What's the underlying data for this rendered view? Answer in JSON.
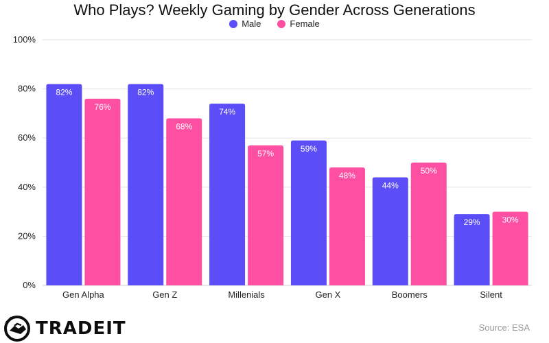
{
  "chart_data": {
    "type": "bar",
    "title": "Who Plays? Weekly Gaming by Gender Across Generations",
    "categories": [
      "Gen Alpha",
      "Gen Z",
      "Millenials",
      "Gen X",
      "Boomers",
      "Silent"
    ],
    "series": [
      {
        "name": "Male",
        "color": "#5b4ef6",
        "values": [
          82,
          82,
          74,
          59,
          44,
          29
        ],
        "labels": [
          "82%",
          "82%",
          "74%",
          "59%",
          "44%",
          "29%"
        ]
      },
      {
        "name": "Female",
        "color": "#ff4fa2",
        "values": [
          76,
          68,
          57,
          48,
          50,
          30
        ],
        "labels": [
          "76%",
          "68%",
          "57%",
          "48%",
          "50%",
          "30%"
        ]
      }
    ],
    "ylim": [
      0,
      100
    ],
    "yticks": [
      0,
      20,
      40,
      60,
      80,
      100
    ],
    "ytick_labels": [
      "0%",
      "20%",
      "40%",
      "60%",
      "80%",
      "100%"
    ],
    "grid": true,
    "legend_position": "top-center"
  },
  "footer": {
    "brand": "TRADEIT",
    "source": "Source: ESA"
  }
}
